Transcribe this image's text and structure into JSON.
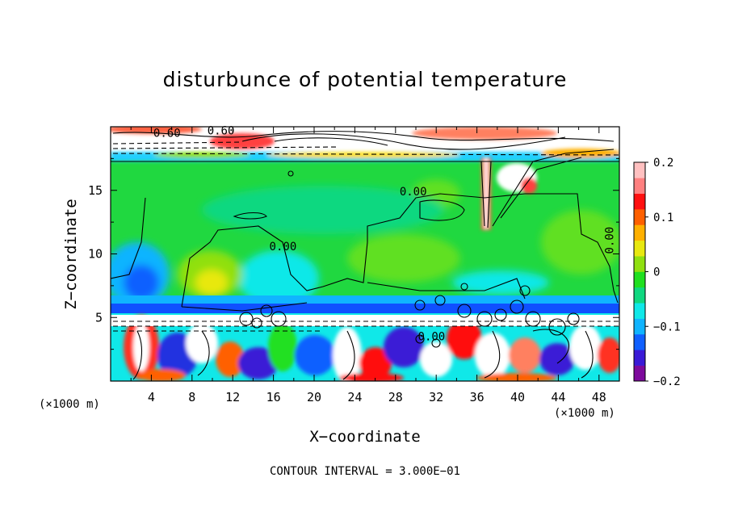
{
  "chart_data": {
    "type": "heatmap",
    "title": "disturbunce of potential temperature",
    "xlabel": "X−coordinate",
    "ylabel": "Z−coordinate",
    "x_unit": "(×1000 m)",
    "z_unit": "(×1000 m)",
    "xlim": [
      0,
      50
    ],
    "ylim": [
      0,
      20
    ],
    "x_ticks": [
      4,
      8,
      12,
      16,
      20,
      24,
      28,
      32,
      36,
      40,
      44,
      48
    ],
    "y_ticks": [
      5,
      10,
      15
    ],
    "colorbar": {
      "range": [
        -0.2,
        0.2
      ],
      "tick_values": [
        0.2,
        0.1,
        0,
        -0.1,
        -0.2
      ],
      "tick_labels": [
        "0.2",
        "0.1",
        "0",
        "−0.1",
        "−0.2"
      ],
      "colors": [
        "#7d0a9c",
        "#3a1ad6",
        "#1060ff",
        "#10b4ff",
        "#10e8e8",
        "#10d880",
        "#20e020",
        "#90e010",
        "#e8e810",
        "#ffb000",
        "#ff6000",
        "#ff1010",
        "#ff8080",
        "#ffc0c0"
      ]
    },
    "contour_labels": [
      "0.60",
      "0.60",
      "0.00",
      "0.00",
      "0.00",
      "0.00"
    ],
    "contour_interval": "CONTOUR INTERVAL = 3.000E−01"
  }
}
